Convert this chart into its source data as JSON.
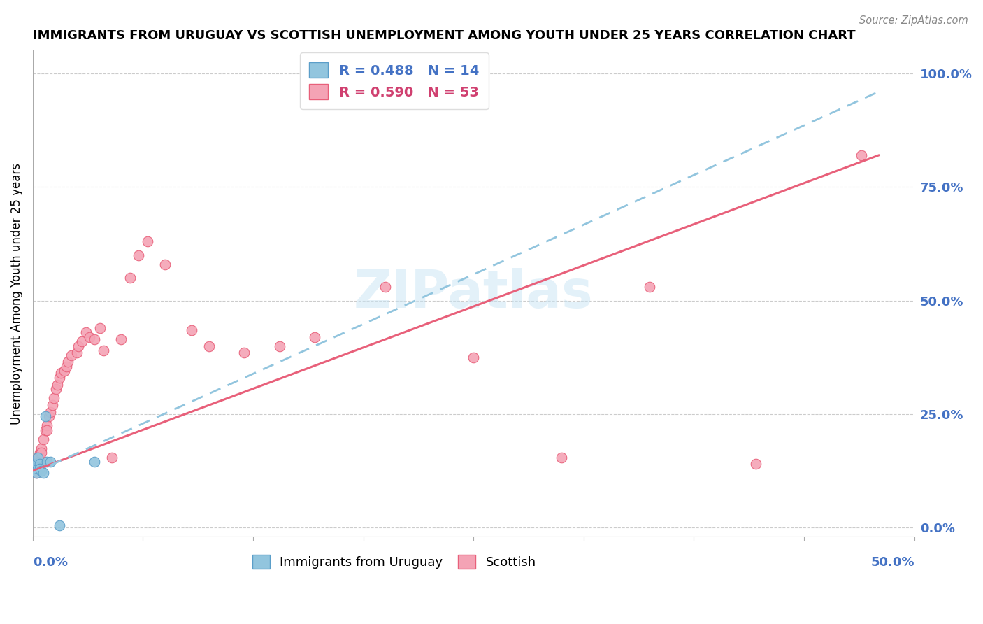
{
  "title": "IMMIGRANTS FROM URUGUAY VS SCOTTISH UNEMPLOYMENT AMONG YOUTH UNDER 25 YEARS CORRELATION CHART",
  "source": "Source: ZipAtlas.com",
  "ylabel": "Unemployment Among Youth under 25 years",
  "ylabel_right_ticks": [
    "0.0%",
    "25.0%",
    "50.0%",
    "75.0%",
    "100.0%"
  ],
  "ylabel_right_vals": [
    0.0,
    0.25,
    0.5,
    0.75,
    1.0
  ],
  "xlim": [
    0.0,
    0.5
  ],
  "ylim": [
    -0.02,
    1.05
  ],
  "color_uruguay": "#92C5DE",
  "color_uruguay_edge": "#5B9EC9",
  "color_scottish": "#F4A3B5",
  "color_scottish_edge": "#E8607A",
  "color_line_uruguay": "#92C5DE",
  "color_line_scottish": "#E8607A",
  "watermark": "ZIPatlas",
  "uruguay_x": [
    0.001,
    0.002,
    0.002,
    0.003,
    0.003,
    0.004,
    0.004,
    0.005,
    0.006,
    0.007,
    0.008,
    0.01,
    0.015,
    0.035
  ],
  "uruguay_y": [
    0.135,
    0.14,
    0.12,
    0.155,
    0.13,
    0.14,
    0.13,
    0.125,
    0.12,
    0.245,
    0.145,
    0.145,
    0.005,
    0.145
  ],
  "scottish_x": [
    0.001,
    0.001,
    0.002,
    0.002,
    0.002,
    0.003,
    0.003,
    0.003,
    0.004,
    0.004,
    0.005,
    0.005,
    0.006,
    0.007,
    0.008,
    0.008,
    0.009,
    0.01,
    0.011,
    0.012,
    0.013,
    0.014,
    0.015,
    0.016,
    0.018,
    0.019,
    0.02,
    0.022,
    0.025,
    0.026,
    0.028,
    0.03,
    0.032,
    0.035,
    0.038,
    0.04,
    0.045,
    0.05,
    0.055,
    0.06,
    0.065,
    0.075,
    0.09,
    0.1,
    0.12,
    0.14,
    0.16,
    0.2,
    0.25,
    0.3,
    0.35,
    0.41,
    0.47
  ],
  "scottish_y": [
    0.14,
    0.13,
    0.14,
    0.13,
    0.12,
    0.155,
    0.14,
    0.135,
    0.165,
    0.145,
    0.175,
    0.165,
    0.195,
    0.215,
    0.225,
    0.215,
    0.245,
    0.255,
    0.27,
    0.285,
    0.305,
    0.315,
    0.33,
    0.34,
    0.345,
    0.355,
    0.365,
    0.38,
    0.385,
    0.4,
    0.41,
    0.43,
    0.42,
    0.415,
    0.44,
    0.39,
    0.155,
    0.415,
    0.55,
    0.6,
    0.63,
    0.58,
    0.435,
    0.4,
    0.385,
    0.4,
    0.42,
    0.53,
    0.375,
    0.155,
    0.53,
    0.14,
    0.82
  ],
  "line_scottish_x0": 0.0,
  "line_scottish_y0": 0.125,
  "line_scottish_x1": 0.48,
  "line_scottish_y1": 0.82,
  "line_uruguay_x0": 0.0,
  "line_uruguay_y0": 0.12,
  "line_uruguay_x1": 0.48,
  "line_uruguay_y1": 0.96
}
